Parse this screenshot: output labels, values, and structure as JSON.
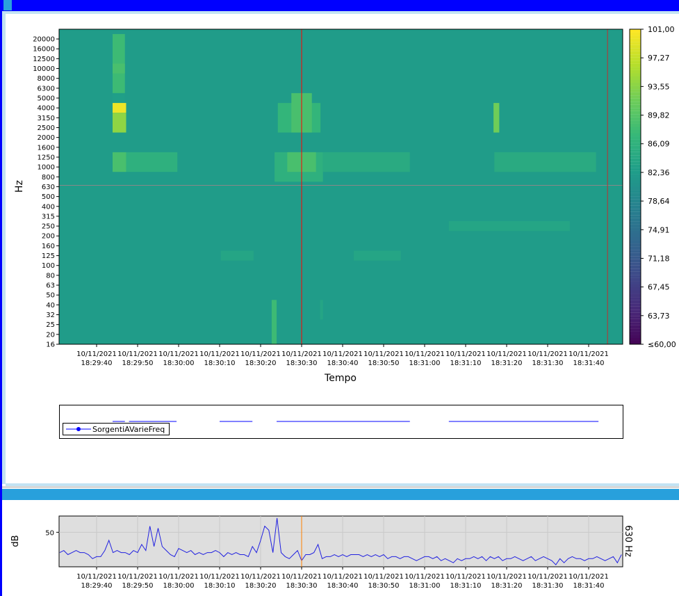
{
  "window": {
    "accent": "#0000ff",
    "section_bar_color": "#28a0dc"
  },
  "heatmap": {
    "ylabel": "Hz",
    "xlabel": "Tempo",
    "bands": [
      "16",
      "20",
      "25",
      "32",
      "40",
      "50",
      "63",
      "80",
      "100",
      "125",
      "160",
      "200",
      "250",
      "315",
      "400",
      "500",
      "630",
      "800",
      "1000",
      "1250",
      "1600",
      "2000",
      "2500",
      "3150",
      "4000",
      "5000",
      "6300",
      "8000",
      "10000",
      "12500",
      "16000",
      "20000"
    ],
    "time_range": [
      "18:29:30.8",
      "18:31:48.3"
    ],
    "x_ticks": [
      {
        "date": "10/11/2021",
        "time": "18:29:40"
      },
      {
        "date": "10/11/2021",
        "time": "18:29:50"
      },
      {
        "date": "10/11/2021",
        "time": "18:30:00"
      },
      {
        "date": "10/11/2021",
        "time": "18:30:10"
      },
      {
        "date": "10/11/2021",
        "time": "18:30:20"
      },
      {
        "date": "10/11/2021",
        "time": "18:30:30"
      },
      {
        "date": "10/11/2021",
        "time": "18:30:40"
      },
      {
        "date": "10/11/2021",
        "time": "18:30:50"
      },
      {
        "date": "10/11/2021",
        "time": "18:31:00"
      },
      {
        "date": "10/11/2021",
        "time": "18:31:10"
      },
      {
        "date": "10/11/2021",
        "time": "18:31:20"
      },
      {
        "date": "10/11/2021",
        "time": "18:31:30"
      },
      {
        "date": "10/11/2021",
        "time": "18:31:40"
      }
    ],
    "background_level": 82.4,
    "cursor_time": "18:30:30",
    "end_marker_time": "18:31:44.6",
    "selected_band": "630",
    "hotspots": [
      {
        "t0": "18:29:43.9",
        "t1": "18:29:46.9",
        "f0": "6300",
        "f1": "20000",
        "level": 88
      },
      {
        "t0": "18:29:43.9",
        "t1": "18:29:46.9",
        "f0": "10000",
        "f1": "10000",
        "level": 89
      },
      {
        "t0": "18:29:43.9",
        "t1": "18:29:46.9",
        "f0": "5000",
        "f1": "5000",
        "level": 83
      },
      {
        "t0": "18:29:43.9",
        "t1": "18:29:47.2",
        "f0": "4000",
        "f1": "4000",
        "level": 100
      },
      {
        "t0": "18:29:43.9",
        "t1": "18:29:47.2",
        "f0": "2500",
        "f1": "3150",
        "level": 94
      },
      {
        "t0": "18:29:43.9",
        "t1": "18:29:47.2",
        "f0": "1000",
        "f1": "1250",
        "level": 89
      },
      {
        "t0": "18:29:47.2",
        "t1": "18:29:59.7",
        "f0": "1000",
        "f1": "1250",
        "level": 86
      },
      {
        "t0": "18:30:24.2",
        "t1": "18:30:34.6",
        "f0": "2500",
        "f1": "4000",
        "level": 87
      },
      {
        "t0": "18:30:27.5",
        "t1": "18:30:32.5",
        "f0": "2500",
        "f1": "5000",
        "level": 89
      },
      {
        "t0": "18:30:23.4",
        "t1": "18:30:35.2",
        "f0": "800",
        "f1": "1250",
        "level": 86
      },
      {
        "t0": "18:30:26.5",
        "t1": "18:30:33.5",
        "f0": "1000",
        "f1": "1250",
        "level": 89
      },
      {
        "t0": "18:30:35.2",
        "t1": "18:30:56.4",
        "f0": "1000",
        "f1": "1250",
        "level": 85
      },
      {
        "t0": "18:31:16.8",
        "t1": "18:31:18.2",
        "f0": "2500",
        "f1": "4000",
        "level": 92
      },
      {
        "t0": "18:31:17.0",
        "t1": "18:31:41.8",
        "f0": "1000",
        "f1": "1250",
        "level": 85
      },
      {
        "t0": "18:31:05.9",
        "t1": "18:31:35.4",
        "f0": "250",
        "f1": "250",
        "level": 84
      },
      {
        "t0": "18:30:10.3",
        "t1": "18:30:18.3",
        "f0": "125",
        "f1": "125",
        "level": 84
      },
      {
        "t0": "18:30:42.7",
        "t1": "18:30:54.2",
        "f0": "125",
        "f1": "125",
        "level": 84
      },
      {
        "t0": "18:30:22.7",
        "t1": "18:30:23.9",
        "f0": "16",
        "f1": "40",
        "level": 88
      },
      {
        "t0": "18:30:34.5",
        "t1": "18:30:35.2",
        "f0": "32",
        "f1": "40",
        "level": 84
      }
    ]
  },
  "colorbar": {
    "min": 60,
    "max": 101,
    "labels": [
      "101,00",
      "97,27",
      "93,55",
      "89,82",
      "86,09",
      "82,36",
      "78,64",
      "74,91",
      "71,18",
      "67,45",
      "63,73",
      "≤60,00"
    ]
  },
  "legend": {
    "series_name": "SorgentiAVarieFreq",
    "line_color": "#0000ff",
    "segments": [
      [
        "18:29:43.9",
        "18:29:46.9"
      ],
      [
        "18:29:47.9",
        "18:29:59.5"
      ],
      [
        "18:30:10.0",
        "18:30:18.0"
      ],
      [
        "18:30:23.9",
        "18:30:56.4"
      ],
      [
        "18:31:05.9",
        "18:31:42.4"
      ]
    ]
  },
  "chart_data": {
    "type": "line",
    "ylabel": "dB",
    "right_label": "630 Hz",
    "y_ticks": [
      "50"
    ],
    "ylim": [
      33,
      58
    ],
    "x_start": "18:29:31",
    "x_step_seconds": 1,
    "cursor_time": "18:30:30",
    "line_color": "#2020e0",
    "values": [
      40,
      41,
      39,
      40,
      41,
      40,
      40,
      39,
      37,
      38,
      38,
      41,
      46,
      40,
      41,
      40,
      40,
      39,
      41,
      40,
      44,
      41,
      53,
      43,
      52,
      43,
      41,
      39,
      38,
      42,
      41,
      40,
      41,
      39,
      40,
      39,
      40,
      40,
      41,
      40,
      38,
      40,
      39,
      40,
      39,
      39,
      38,
      43,
      40,
      46,
      53,
      51,
      40,
      57,
      40,
      38,
      37,
      39,
      41,
      36,
      39,
      39,
      40,
      44,
      37,
      38,
      38,
      39,
      38,
      39,
      38,
      39,
      39,
      39,
      38,
      39,
      38,
      39,
      38,
      39,
      37,
      38,
      38,
      37,
      38,
      38,
      37,
      36,
      37,
      38,
      38,
      37,
      38,
      36,
      37,
      36,
      35,
      37,
      36,
      37,
      37,
      38,
      37,
      38,
      36,
      38,
      37,
      38,
      36,
      37,
      37,
      38,
      37,
      36,
      37,
      38,
      36,
      37,
      38,
      37,
      36,
      34,
      37,
      35,
      37,
      38,
      37,
      37,
      36,
      37,
      37,
      38,
      37,
      36,
      37,
      38,
      35,
      39
    ]
  }
}
